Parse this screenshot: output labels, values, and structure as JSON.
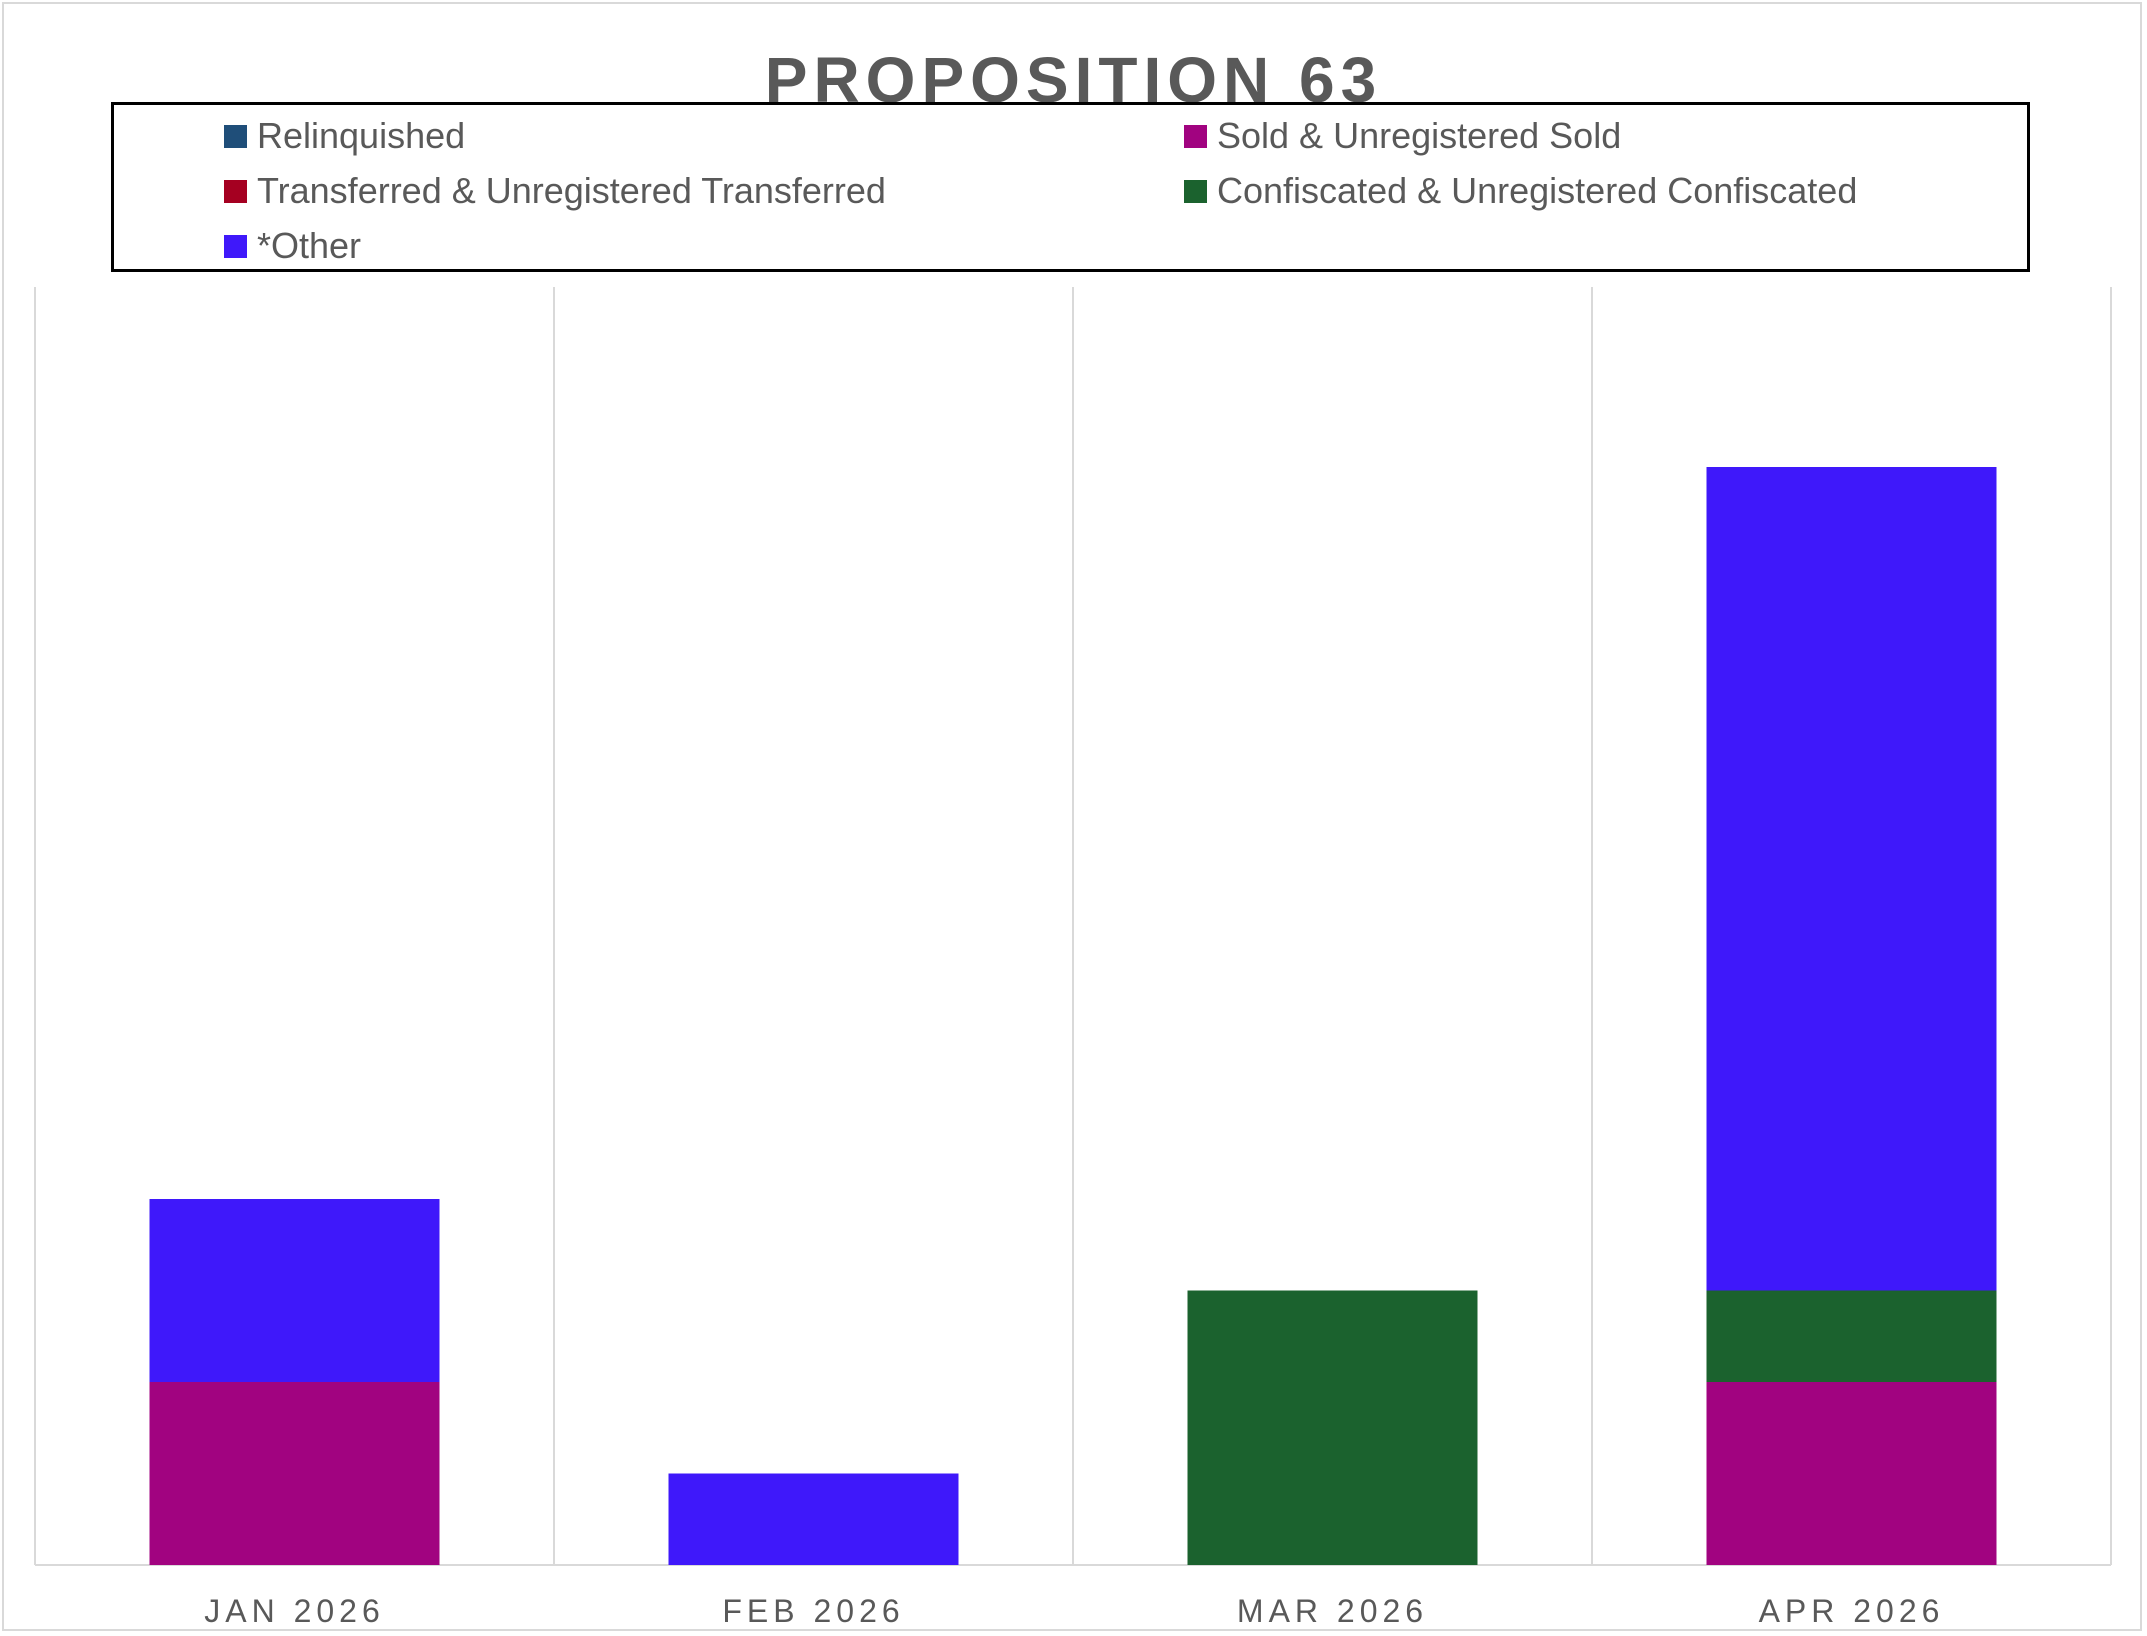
{
  "chart_data": {
    "type": "bar",
    "stacked": true,
    "title": "PROPOSITION 63",
    "xlabel": "",
    "ylabel": "",
    "categories": [
      "JAN 2026",
      "FEB 2026",
      "MAR 2026",
      "APR 2026"
    ],
    "series": [
      {
        "name": "Relinquished",
        "color": "#1F4E79",
        "values": [
          0,
          0,
          0,
          0
        ]
      },
      {
        "name": "Sold & Unregistered Sold",
        "color": "#A10380",
        "values": [
          2,
          0,
          0,
          2
        ]
      },
      {
        "name": "Transferred & Unregistered Transferred",
        "color": "#A50021",
        "values": [
          0,
          0,
          0,
          0
        ]
      },
      {
        "name": "Confiscated & Unregistered Confiscated",
        "color": "#1B622E",
        "values": [
          0,
          0,
          3,
          1
        ]
      },
      {
        "name": "*Other",
        "color": "#3F18FA",
        "values": [
          2,
          1,
          0,
          9
        ]
      }
    ],
    "ylim": [
      0,
      14
    ],
    "grid": "vertical category separators",
    "legend_position": "top"
  }
}
